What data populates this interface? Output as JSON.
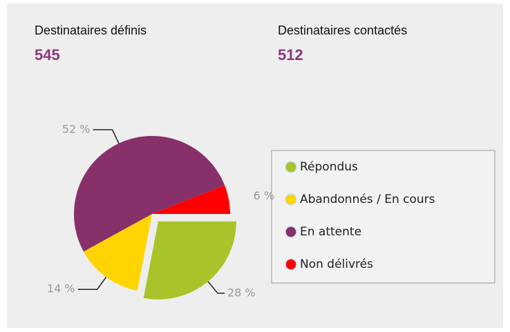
{
  "stats": [
    {
      "label": "Destinataires définis",
      "value": 545
    },
    {
      "label": "Destinataires contactés",
      "value": 512
    }
  ],
  "chart_data": {
    "type": "pie",
    "categories": [
      "Répondus",
      "Abandonnés / En cours",
      "En attente",
      "Non délivrés"
    ],
    "values": [
      28,
      14,
      52,
      6
    ],
    "value_labels": [
      "28 %",
      "14 %",
      "52 %",
      "6 %"
    ],
    "colors": [
      "#a8c42a",
      "#ffd400",
      "#88306a",
      "#ff0000"
    ],
    "exploded": [
      true,
      false,
      false,
      false
    ]
  }
}
